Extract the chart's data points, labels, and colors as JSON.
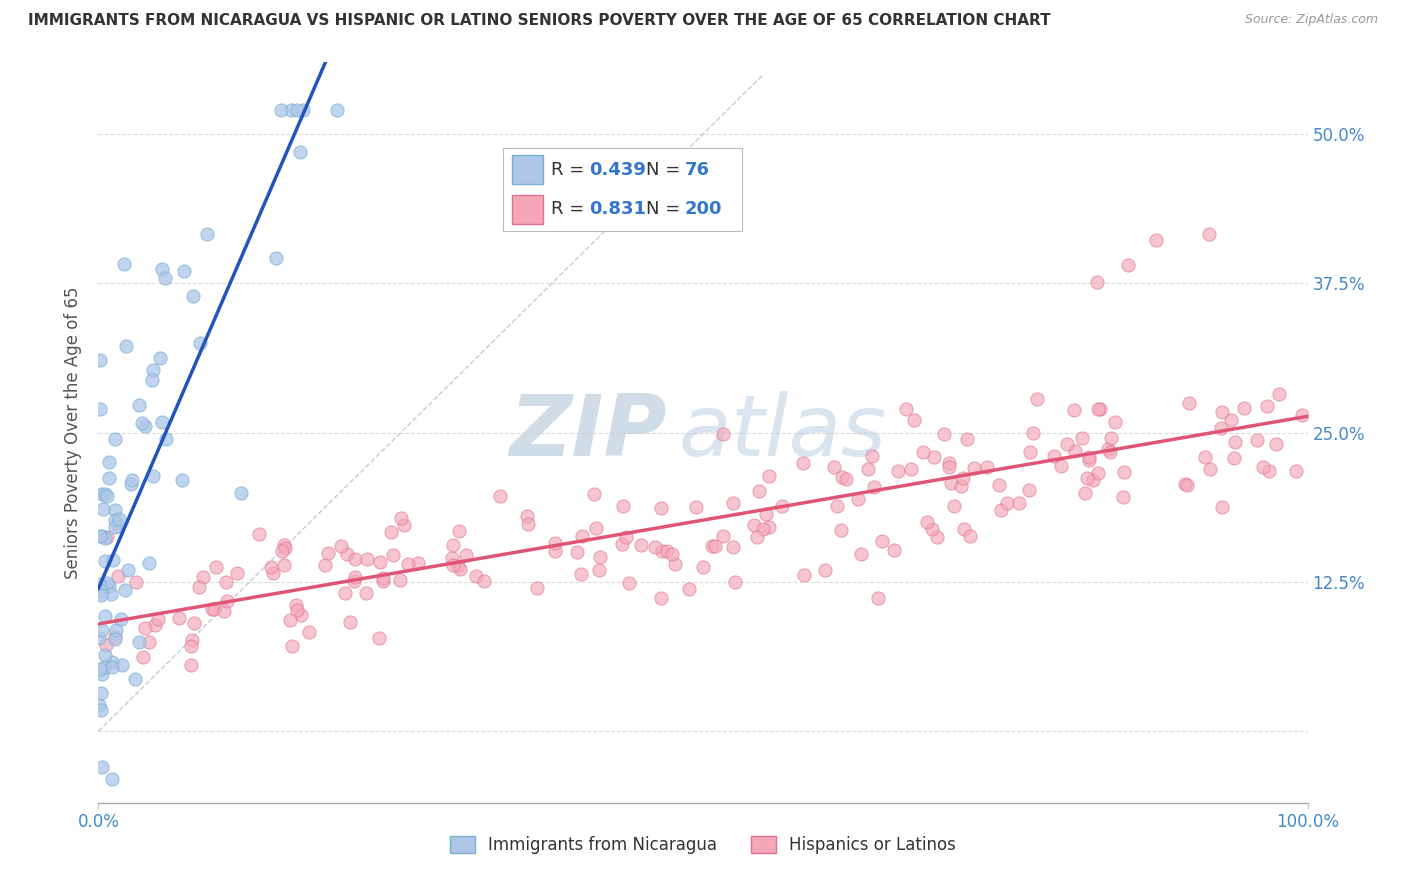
{
  "title": "IMMIGRANTS FROM NICARAGUA VS HISPANIC OR LATINO SENIORS POVERTY OVER THE AGE OF 65 CORRELATION CHART",
  "source": "Source: ZipAtlas.com",
  "ylabel": "Seniors Poverty Over the Age of 65",
  "xlim": [
    0.0,
    1.0
  ],
  "ylim": [
    -0.06,
    0.56
  ],
  "xticks": [
    0.0,
    1.0
  ],
  "xticklabels": [
    "0.0%",
    "100.0%"
  ],
  "yticks": [
    0.0,
    0.125,
    0.25,
    0.375,
    0.5
  ],
  "yticklabels_right": [
    "",
    "12.5%",
    "25.0%",
    "37.5%",
    "50.0%"
  ],
  "blue_color": "#adc6e8",
  "blue_edge": "#7aafd4",
  "pink_color": "#f4a7b8",
  "pink_edge": "#e07090",
  "blue_line": "#2255bb",
  "pink_line": "#e05575",
  "ref_line_color": "#b0c0d8",
  "watermark_zip": "ZIP",
  "watermark_atlas": "atlas",
  "watermark_color": "#d0dce8",
  "background": "#ffffff",
  "grid_color": "#cccccc",
  "title_color": "#333333",
  "axis_label_color": "#4488cc",
  "R1": 0.439,
  "N1": 76,
  "R2": 0.831,
  "N2": 200,
  "seed1": 42,
  "seed2": 99
}
